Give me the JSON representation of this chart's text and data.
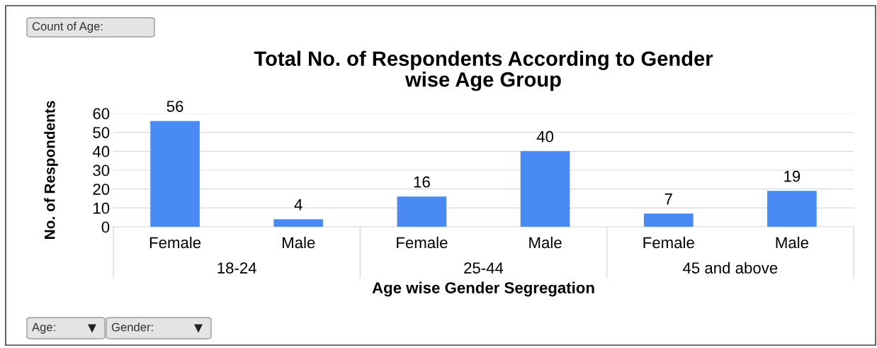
{
  "chart_data": {
    "type": "bar",
    "title": "Total No. of Respondents According to Gender\nwise Age Group",
    "xlabel": "Age wise Gender Segregation",
    "ylabel": "No. of Respondents",
    "categories": [
      "Female",
      "Male",
      "Female",
      "Male",
      "Female",
      "Male"
    ],
    "values": [
      56,
      4,
      16,
      40,
      7,
      19
    ],
    "color": "#4a8af4",
    "data_labels": true,
    "ylim": [
      0,
      60
    ],
    "yticks": [
      0,
      10,
      20,
      30,
      40,
      50,
      60
    ],
    "grid": "y",
    "legend": false,
    "annotations": [
      "Count of Age:",
      "Age:",
      "Gender:",
      "18-24",
      "25-44",
      "45 and above"
    ]
  }
}
